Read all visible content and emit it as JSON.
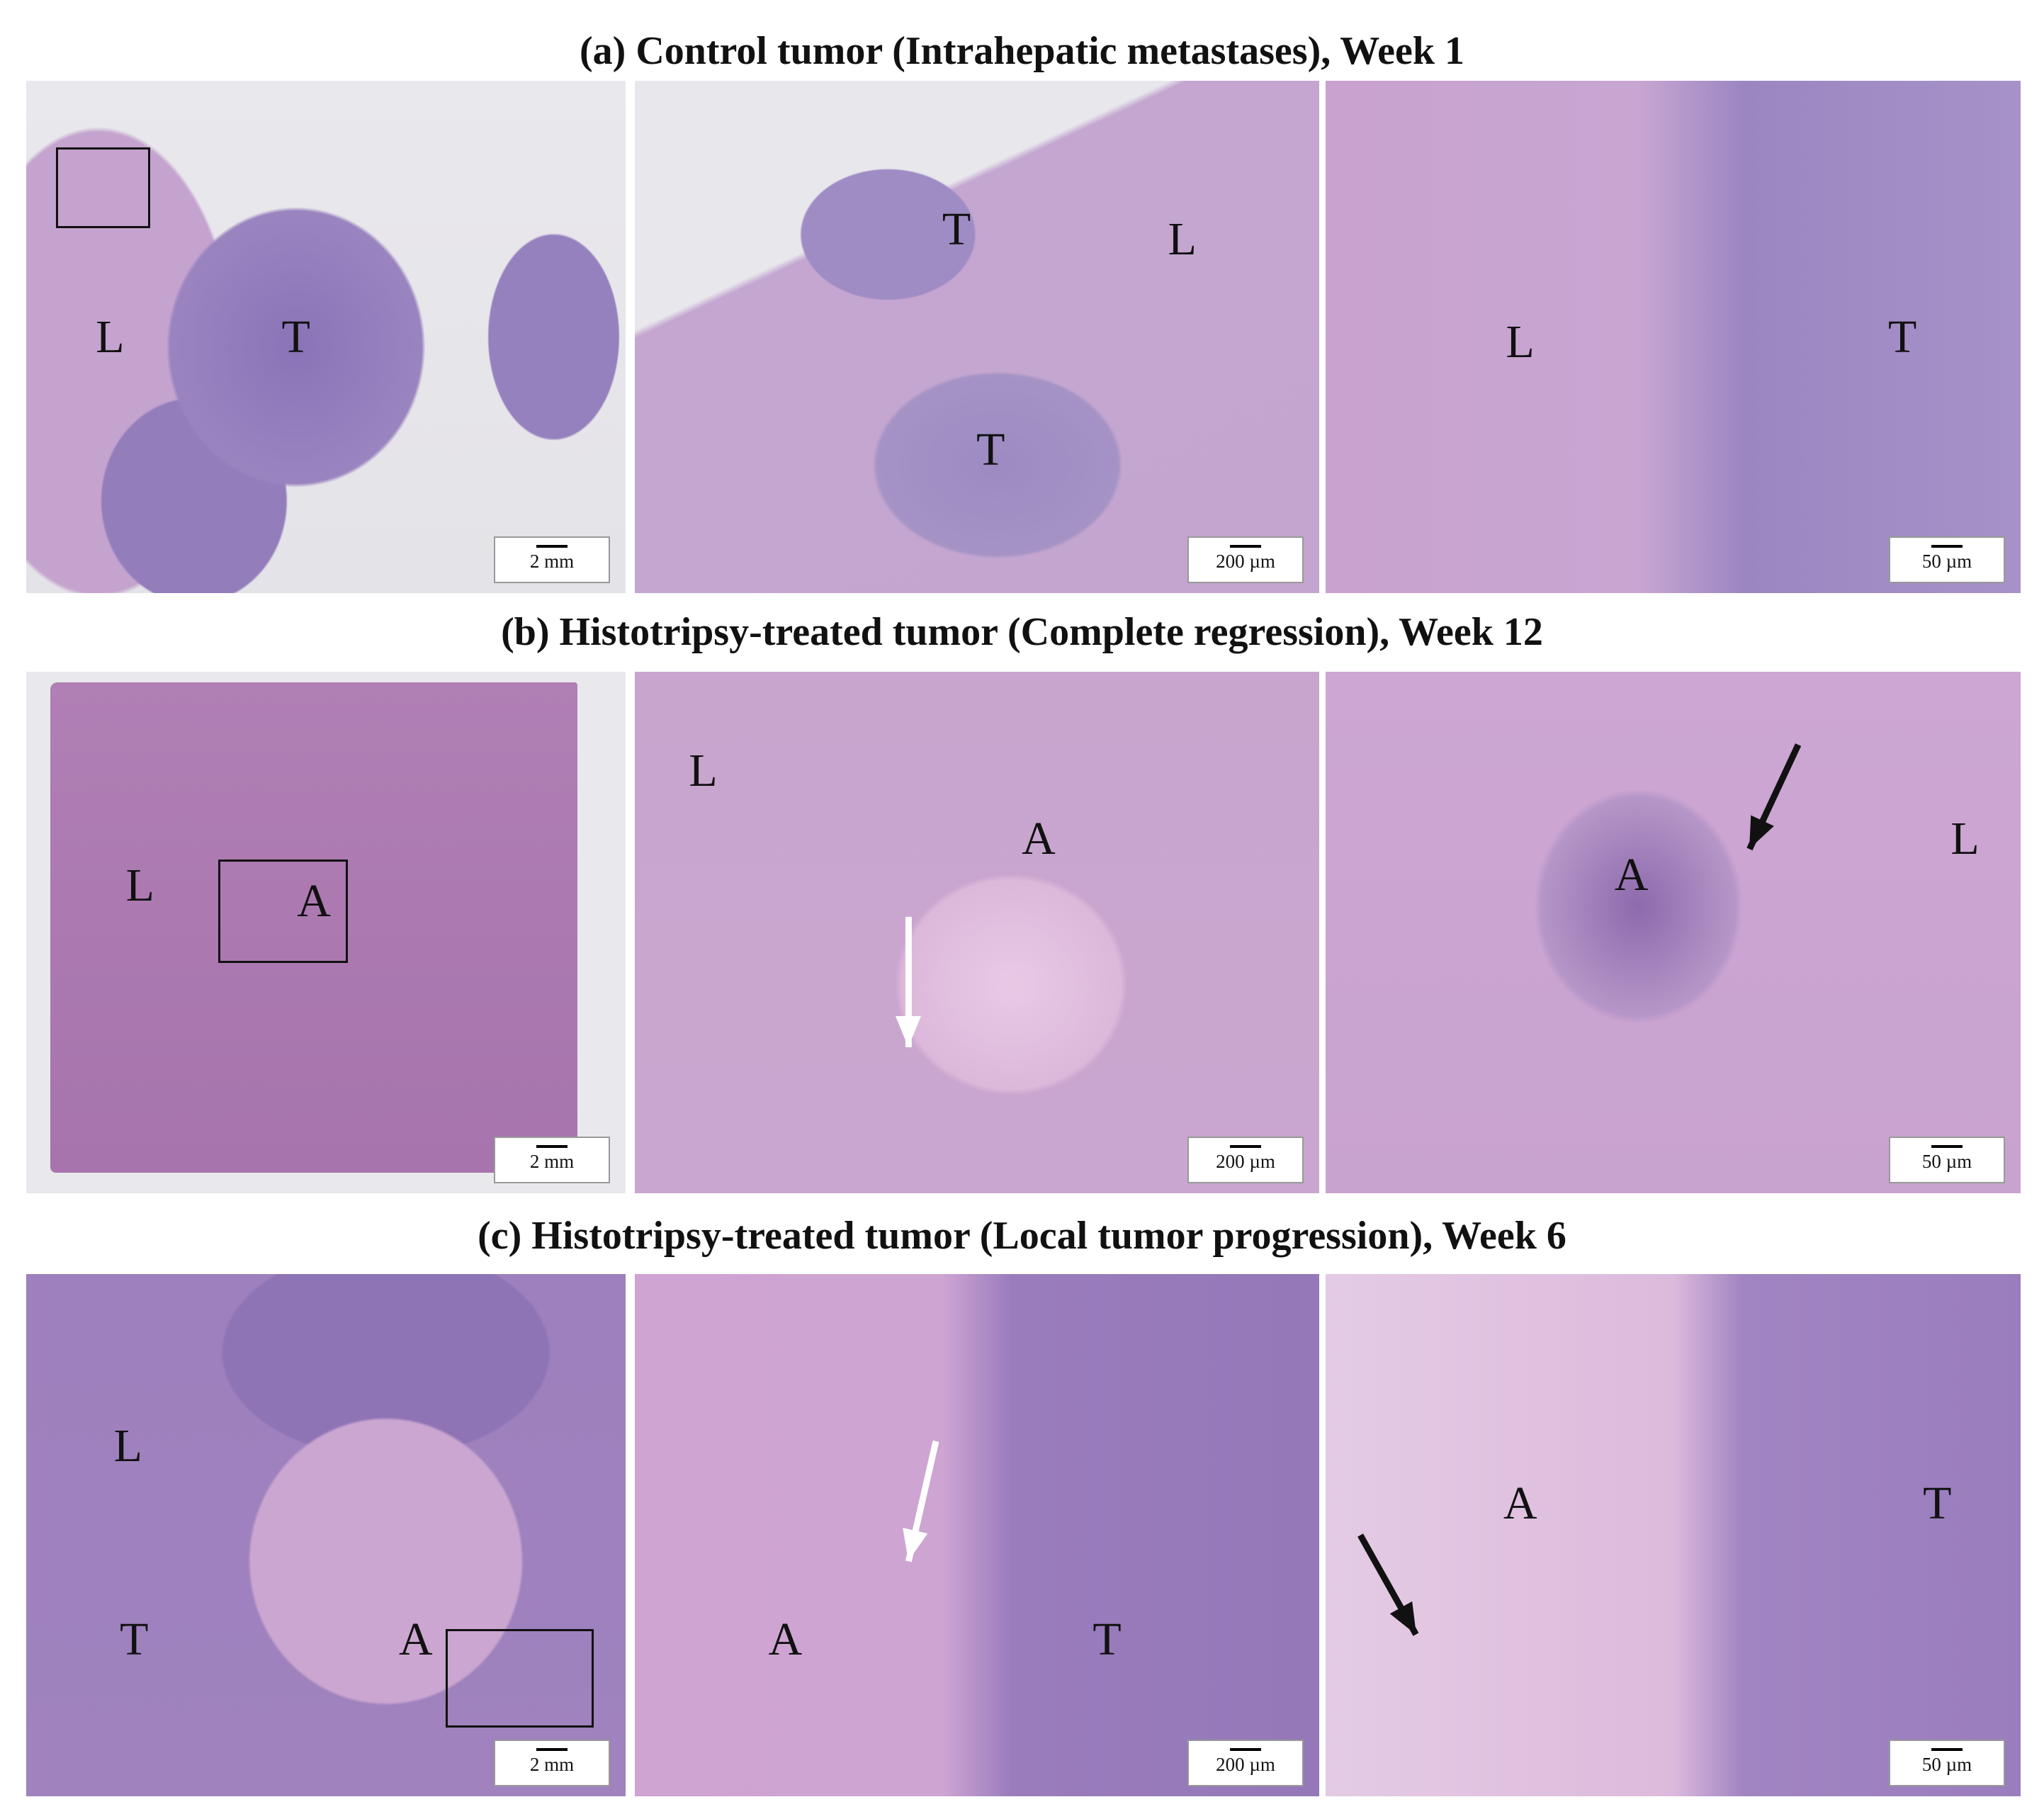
{
  "rows": [
    {
      "title": "(a) Control tumor (Intrahepatic metastases), Week 1",
      "panels": [
        {
          "labels": [
            "L",
            "T"
          ],
          "scale_bar": "2 mm"
        },
        {
          "labels": [
            "T",
            "L",
            "T"
          ],
          "scale_bar": "200 µm"
        },
        {
          "labels": [
            "L",
            "T"
          ],
          "scale_bar": "50 µm"
        }
      ]
    },
    {
      "title": "(b) Histotripsy-treated tumor (Complete regression), Week 12",
      "panels": [
        {
          "labels": [
            "L",
            "A"
          ],
          "scale_bar": "2 mm"
        },
        {
          "labels": [
            "L",
            "A"
          ],
          "scale_bar": "200 µm"
        },
        {
          "labels": [
            "A",
            "L"
          ],
          "scale_bar": "50 µm"
        }
      ]
    },
    {
      "title": "(c) Histotripsy-treated tumor (Local tumor progression), Week 6",
      "panels": [
        {
          "labels": [
            "L",
            "T",
            "A"
          ],
          "scale_bar": "2 mm"
        },
        {
          "labels": [
            "A",
            "T"
          ],
          "scale_bar": "200 µm"
        },
        {
          "labels": [
            "A",
            "T"
          ],
          "scale_bar": "50 µm"
        }
      ]
    }
  ]
}
